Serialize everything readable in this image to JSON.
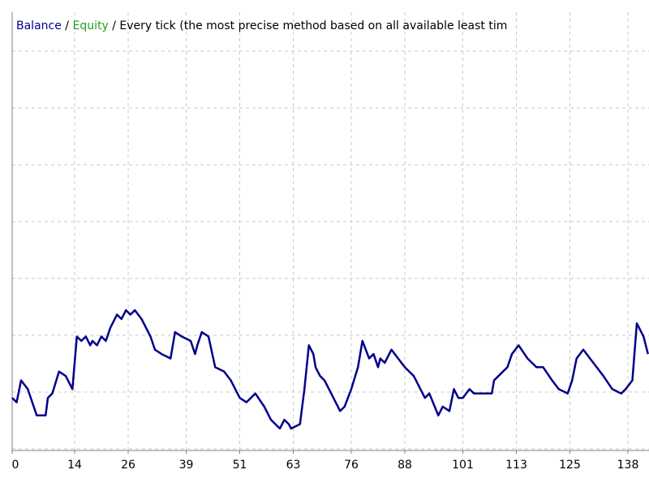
{
  "chart_data": {
    "type": "line",
    "subtitle": "Every tick (the most precise method based on all available least tim",
    "separator": "/",
    "equity_label": {
      "text": "Equity",
      "color": "#22a022"
    },
    "x": [
      0,
      1,
      2,
      3.5,
      5.5,
      7.5,
      8,
      9,
      10.5,
      12,
      13.5,
      14.5,
      15.5,
      16.5,
      17.5,
      18,
      19,
      20,
      21,
      22,
      23.5,
      24.5,
      25.5,
      26.5,
      27.5,
      29,
      31,
      32,
      33.5,
      35.5,
      36.5,
      38,
      40,
      41,
      41.5,
      42.5,
      44,
      45.5,
      47.5,
      49,
      51,
      52.5,
      54.5,
      56.5,
      58,
      60,
      61,
      62,
      62.5,
      64.5,
      65.5,
      66.5,
      67.5,
      68,
      69,
      70,
      72,
      73.5,
      74.5,
      76,
      77.5,
      78.5,
      80,
      81,
      82,
      82.5,
      83.5,
      85,
      86.5,
      88,
      90,
      91.5,
      92.5,
      93.5,
      95.5,
      96.5,
      98,
      99,
      100,
      101,
      102.5,
      103.5,
      105.5,
      107.5,
      108,
      109,
      111,
      112,
      113.5,
      115.5,
      117.5,
      119,
      121,
      122.5,
      124.5,
      125.5,
      126.5,
      128,
      129.5,
      131,
      132.5,
      134.5,
      136.5,
      137.5,
      139,
      140,
      141.5,
      142.5
    ],
    "series": [
      {
        "name": "Balance",
        "color": "#00008b",
        "values": [
          12,
          11,
          16,
          14,
          8,
          8,
          12,
          13,
          18,
          17,
          14,
          26,
          25,
          26,
          24,
          25,
          24,
          26,
          25,
          28,
          31,
          30,
          32,
          31,
          32,
          30,
          26,
          23,
          22,
          21,
          27,
          26,
          25,
          22,
          24,
          27,
          26,
          19,
          18,
          16,
          12,
          11,
          13,
          10,
          7,
          5,
          7,
          6,
          5,
          6,
          14,
          24,
          22,
          19,
          17,
          16,
          12,
          9,
          10,
          14,
          19,
          25,
          21,
          22,
          19,
          21,
          20,
          23,
          21,
          19,
          17,
          14,
          12,
          13,
          8,
          10,
          9,
          14,
          12,
          12,
          14,
          13,
          13,
          13,
          16,
          17,
          19,
          22,
          24,
          21,
          19,
          19,
          16,
          14,
          13,
          16,
          21,
          23,
          21,
          19,
          17,
          14,
          13,
          14,
          16,
          29,
          26,
          22
        ]
      }
    ],
    "xlim": [
      0,
      142.5
    ],
    "ylim": [
      0,
      100
    ],
    "xticks": [
      0,
      14,
      26,
      39,
      51,
      63,
      76,
      88,
      101,
      113,
      125,
      138
    ],
    "grid": true
  }
}
